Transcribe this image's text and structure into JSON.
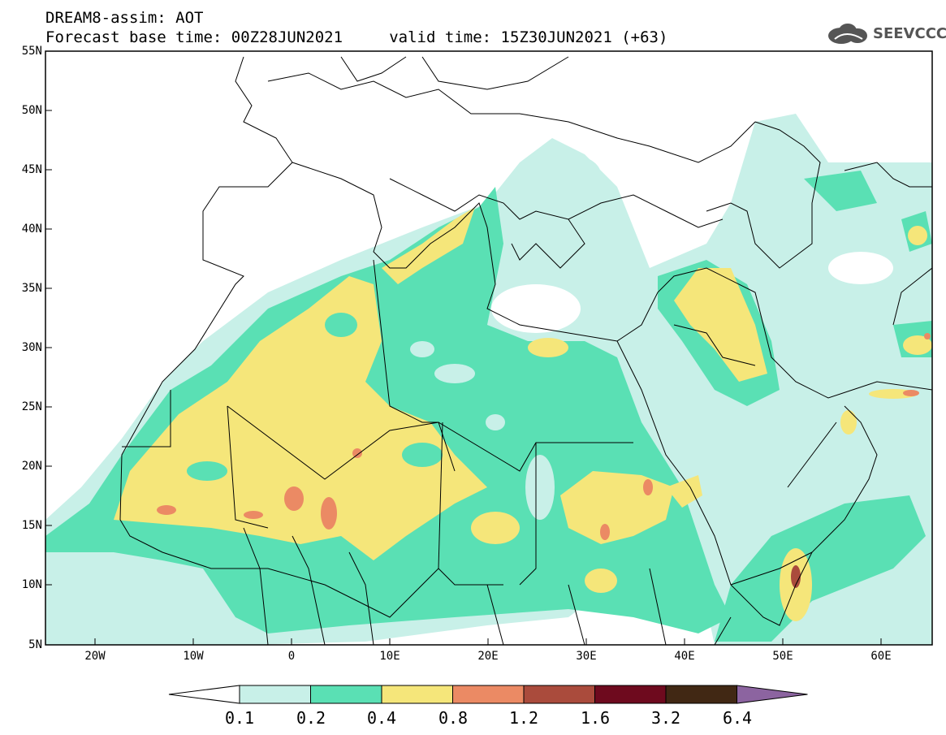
{
  "header": {
    "title_line1": "DREAM8-assim: AOT",
    "title_line2": "Forecast base time: 00Z28JUN2021     valid time: 15Z30JUN2021 (+63)",
    "logo_text": "SEEVCCC"
  },
  "map": {
    "lon_range": [
      -25,
      65
    ],
    "lat_range": [
      5,
      55
    ],
    "lat_labels": [
      "55N",
      "50N",
      "45N",
      "40N",
      "35N",
      "30N",
      "25N",
      "20N",
      "15N",
      "10N",
      "5N"
    ],
    "lon_labels": [
      "20W",
      "10W",
      "0",
      "10E",
      "20E",
      "30E",
      "40E",
      "50E",
      "60E"
    ],
    "field": "Aerosol Optical Thickness"
  },
  "colorbar": {
    "labels": [
      "0.1",
      "0.2",
      "0.4",
      "0.8",
      "1.2",
      "1.6",
      "3.2",
      "6.4"
    ],
    "colors": [
      "#ffffff",
      "#c8f0e8",
      "#5ae0b4",
      "#f5e67a",
      "#eb8a64",
      "#aa4b3c",
      "#6e0a1e",
      "#412814",
      "#8c64a0"
    ]
  }
}
